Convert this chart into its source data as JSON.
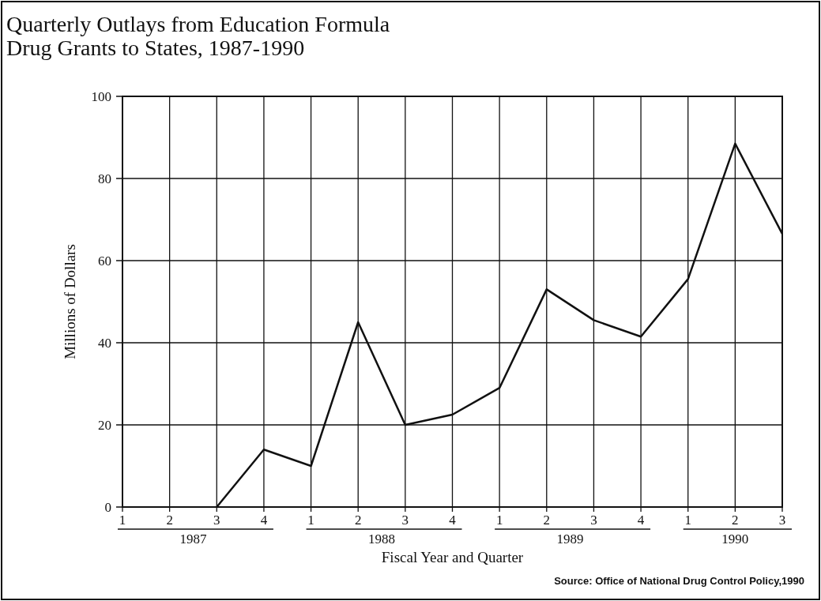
{
  "chart_data": {
    "type": "line",
    "title": "Quarterly Outlays from Education Formula\nDrug Grants to States, 1987-1990",
    "xlabel": "Fiscal Year and Quarter",
    "ylabel": "Millions of Dollars",
    "categories": [
      "1",
      "2",
      "3",
      "4",
      "1",
      "2",
      "3",
      "4",
      "1",
      "2",
      "3",
      "4",
      "1",
      "2",
      "3"
    ],
    "series": [
      {
        "color": "#111111",
        "values": [
          null,
          null,
          0,
          14,
          10,
          45,
          20,
          22.5,
          29,
          53,
          45.5,
          41.5,
          55.5,
          88.5,
          66.5
        ]
      }
    ],
    "ylim": [
      0,
      100
    ],
    "yticks": [
      0,
      20,
      40,
      60,
      80,
      100
    ],
    "grid": true,
    "marker": "none",
    "line_style": "solid",
    "annotations": [
      "1987",
      "1988",
      "1989",
      "1990",
      "Source: Office of National Drug Control Policy,1990"
    ]
  }
}
